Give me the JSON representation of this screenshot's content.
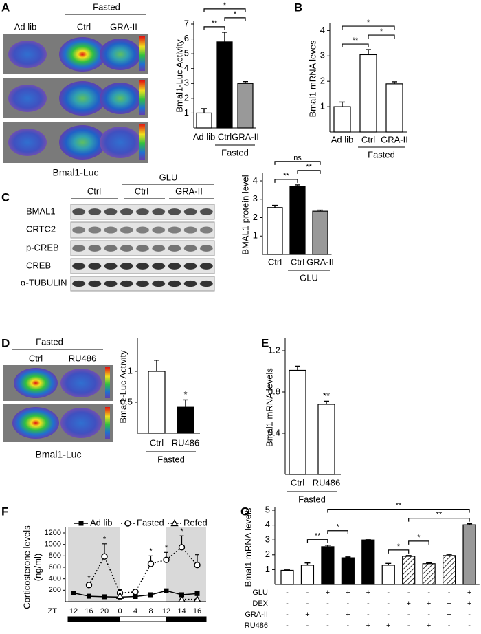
{
  "panel_labels": [
    "A",
    "B",
    "C",
    "D",
    "E",
    "F",
    "G"
  ],
  "panel_a_images": {
    "header": "Fasted",
    "columns": [
      "Ad lib",
      "Ctrl",
      "GRA-II"
    ],
    "caption": "Bmal1-Luc"
  },
  "panel_c_blot": {
    "group": "GLU",
    "columns": [
      "Ctrl",
      "Ctrl",
      "GRA-II"
    ],
    "rows": [
      "BMAL1",
      "CRTC2",
      "p-CREB",
      "CREB",
      "α-TUBULIN"
    ]
  },
  "panel_d_images": {
    "header": "Fasted",
    "columns": [
      "Ctrl",
      "RU486"
    ],
    "caption": "Bmal1-Luc"
  },
  "chart_data": [
    {
      "type": "bar",
      "ylabel": "Bmal1-Luc Activity",
      "categories": [
        "Ad lib",
        "Ctrl",
        "GRA-II"
      ],
      "values": [
        1.0,
        5.8,
        3.0
      ],
      "errors": [
        0.3,
        0.65,
        0.12
      ],
      "colors": [
        "#ffffff",
        "#000000",
        "#999999"
      ],
      "ylim": [
        0,
        7
      ],
      "yticks": [
        1,
        2,
        3,
        4,
        5,
        6,
        7
      ],
      "group": {
        "label": "Fasted",
        "categories": [
          1,
          2
        ]
      },
      "significance": [
        {
          "between": [
            0,
            1
          ],
          "label": "**"
        },
        {
          "between": [
            1,
            2
          ],
          "label": "*"
        },
        {
          "between": [
            0,
            2
          ],
          "label": "*"
        }
      ]
    },
    {
      "type": "bar",
      "ylabel": "Bmal1 mRNA leves",
      "categories": [
        "Ad lib",
        "Ctrl",
        "GRA-II"
      ],
      "values": [
        1.0,
        3.05,
        1.9
      ],
      "errors": [
        0.18,
        0.2,
        0.08
      ],
      "colors": [
        "#ffffff",
        "#ffffff",
        "#ffffff"
      ],
      "ylim": [
        0,
        4.2
      ],
      "yticks": [
        1,
        2,
        3,
        4
      ],
      "group": {
        "label": "Fasted",
        "categories": [
          1,
          2
        ]
      },
      "significance": [
        {
          "between": [
            0,
            1
          ],
          "label": "**"
        },
        {
          "between": [
            1,
            2
          ],
          "label": "*"
        },
        {
          "between": [
            0,
            2
          ],
          "label": "*"
        }
      ]
    },
    {
      "type": "bar",
      "ylabel": "BMAL1 protein level",
      "categories": [
        "Ctrl",
        "Ctrl",
        "GRA-II"
      ],
      "values": [
        2.55,
        3.7,
        2.35
      ],
      "errors": [
        0.12,
        0.08,
        0.06
      ],
      "colors": [
        "#ffffff",
        "#000000",
        "#999999"
      ],
      "ylim": [
        0,
        4.3
      ],
      "yticks": [
        1,
        2,
        3,
        4
      ],
      "group": {
        "label": "GLU",
        "categories": [
          1,
          2
        ]
      },
      "significance": [
        {
          "between": [
            0,
            1
          ],
          "label": "**"
        },
        {
          "between": [
            1,
            2
          ],
          "label": "**"
        },
        {
          "between": [
            0,
            2
          ],
          "label": "ns"
        }
      ]
    },
    {
      "type": "bar",
      "ylabel": "Bmal1-Luc Activity",
      "categories": [
        "Ctrl",
        "RU486"
      ],
      "values": [
        1.0,
        0.42
      ],
      "errors": [
        0.18,
        0.12
      ],
      "colors": [
        "#ffffff",
        "#000000"
      ],
      "ylim": [
        0,
        1.5
      ],
      "yticks": [
        0.5,
        1
      ],
      "group": {
        "label": "Fasted",
        "categories": [
          0,
          1
        ]
      },
      "significance": [
        {
          "between": [
            1
          ],
          "label": "*"
        }
      ]
    },
    {
      "type": "bar",
      "ylabel": "Bmal1 mRNA levels",
      "categories": [
        "Ctrl",
        "RU486"
      ],
      "values": [
        1.01,
        0.68
      ],
      "errors": [
        0.04,
        0.03
      ],
      "colors": [
        "#ffffff",
        "#ffffff"
      ],
      "ylim": [
        0,
        1.3
      ],
      "yticks": [
        0.4,
        0.8,
        1.2
      ],
      "group": {
        "label": "Fasted",
        "categories": [
          0,
          1
        ]
      },
      "significance": [
        {
          "between": [
            1
          ],
          "label": "**"
        }
      ]
    },
    {
      "type": "line",
      "ylabel": [
        "Corticosterone levels",
        "(ng/ml)"
      ],
      "xlabel": "ZT",
      "categories": [
        "12",
        "16",
        "20",
        "0",
        "4",
        "8",
        "12",
        "14",
        "16"
      ],
      "ylim": [
        0,
        1200
      ],
      "yticks": [
        200,
        400,
        600,
        800,
        1000,
        1200
      ],
      "shaded": [
        [
          0,
          3
        ],
        [
          6,
          8
        ]
      ],
      "shade_color": "#d9d9d9",
      "series": [
        {
          "name": "Ad lib",
          "color": "#000000",
          "marker": "square",
          "dash": "solid",
          "values": [
            150,
            95,
            85,
            80,
            90,
            120,
            190,
            120,
            140
          ]
        },
        {
          "name": "Fasted",
          "color": "#000000",
          "marker": "circle",
          "dash": "dotted",
          "values": [
            null,
            290,
            790,
            150,
            170,
            660,
            730,
            950,
            640
          ],
          "errors": [
            null,
            40,
            220,
            60,
            40,
            140,
            130,
            200,
            180
          ],
          "annotations": [
            null,
            "*",
            "*",
            null,
            null,
            "*",
            "*",
            "*",
            null
          ]
        },
        {
          "name": "Refed",
          "color": "#000000",
          "marker": "triangle",
          "dash": "dotted",
          "values": [
            null,
            null,
            null,
            100,
            null,
            null,
            null,
            40,
            40
          ]
        }
      ]
    },
    {
      "type": "bar",
      "ylabel": "Bmal1 mRNA levels",
      "values": [
        0.95,
        1.3,
        2.55,
        1.8,
        3.0,
        1.3,
        1.9,
        1.4,
        1.95,
        4.02
      ],
      "errors": [
        0.03,
        0.15,
        0.1,
        0.06,
        0.02,
        0.12,
        0.05,
        0.05,
        0.08,
        0.07
      ],
      "colors": [
        "#ffffff",
        "#ffffff",
        "#000000",
        "#000000",
        "#000000",
        "#ffffff",
        "hatch",
        "hatch",
        "hatch",
        "#999999"
      ],
      "ylim": [
        0,
        5
      ],
      "yticks": [
        1,
        2,
        3,
        4,
        5
      ],
      "conditions": [
        {
          "name": "GLU",
          "marks": [
            "-",
            "-",
            "+",
            "+",
            "+",
            "-",
            "-",
            "-",
            "-",
            "+"
          ]
        },
        {
          "name": "DEX",
          "marks": [
            "-",
            "-",
            "-",
            "-",
            "-",
            "-",
            "+",
            "+",
            "+",
            "+"
          ]
        },
        {
          "name": "GRA-II",
          "marks": [
            "-",
            "+",
            "-",
            "+",
            "-",
            "-",
            "-",
            "-",
            "+",
            "-"
          ]
        },
        {
          "name": "RU486",
          "marks": [
            "-",
            "-",
            "-",
            "-",
            "+",
            "+",
            "-",
            "+",
            "-",
            "-"
          ]
        }
      ],
      "significance": [
        {
          "between": [
            1,
            2
          ],
          "label": "**"
        },
        {
          "between": [
            2,
            3
          ],
          "label": "*"
        },
        {
          "between": [
            5,
            6
          ],
          "label": "*"
        },
        {
          "between": [
            6,
            7
          ],
          "label": "*"
        },
        {
          "between": [
            6,
            9
          ],
          "label": "**"
        },
        {
          "between": [
            2,
            9
          ],
          "label": "**"
        }
      ]
    }
  ]
}
